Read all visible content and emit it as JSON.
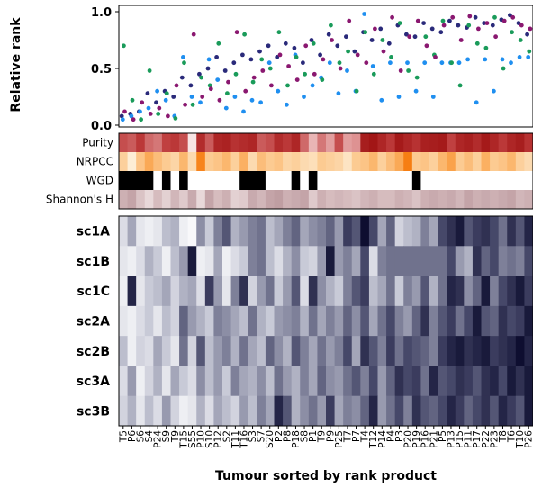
{
  "chart_data": {
    "type": "scatter+heatmap",
    "scatter": {
      "ylabel": "Relative rank",
      "ylim": [
        0.0,
        1.0
      ],
      "yticks": [
        "0.0",
        "0.5",
        "1.0"
      ],
      "series": [
        {
          "name": "",
          "color": "#2a2a7a",
          "values": [
            0.08,
            0.1,
            0.12,
            0.28,
            0.2,
            0.3,
            0.25,
            0.42,
            0.35,
            0.45,
            0.5,
            0.6,
            0.48,
            0.55,
            0.62,
            0.58,
            0.65,
            0.7,
            0.6,
            0.72,
            0.68,
            0.55,
            0.75,
            0.62,
            0.8,
            0.7,
            0.78,
            0.65,
            0.82,
            0.75,
            0.85,
            0.72,
            0.88,
            0.8,
            0.78,
            0.9,
            0.85,
            0.82,
            0.92,
            0.88,
            0.86,
            0.95,
            0.9,
            0.88,
            0.93,
            0.97,
            0.9,
            0.8
          ]
        },
        {
          "name": "",
          "color": "#1f8ff0",
          "values": [
            0.05,
            0.08,
            0.12,
            0.15,
            0.3,
            0.22,
            0.08,
            0.6,
            0.25,
            0.2,
            0.58,
            0.4,
            0.15,
            0.25,
            0.12,
            0.22,
            0.2,
            0.55,
            0.3,
            0.18,
            0.62,
            0.25,
            0.35,
            0.42,
            0.55,
            0.28,
            0.48,
            0.3,
            0.98,
            0.52,
            0.22,
            0.55,
            0.25,
            0.55,
            0.3,
            0.55,
            0.25,
            0.55,
            0.55,
            0.55,
            0.58,
            0.2,
            0.58,
            0.3,
            0.58,
            0.55,
            0.6,
            0.6
          ]
        },
        {
          "name": "",
          "color": "#1a9b5a",
          "values": [
            0.7,
            0.22,
            0.05,
            0.48,
            0.1,
            0.28,
            0.06,
            0.55,
            0.18,
            0.42,
            0.35,
            0.72,
            0.28,
            0.45,
            0.8,
            0.38,
            0.58,
            0.5,
            0.82,
            0.35,
            0.6,
            0.45,
            0.72,
            0.4,
            0.88,
            0.55,
            0.65,
            0.3,
            0.82,
            0.45,
            0.75,
            0.6,
            0.9,
            0.48,
            0.42,
            0.78,
            0.62,
            0.92,
            0.55,
            0.35,
            0.88,
            0.72,
            0.68,
            0.95,
            0.5,
            0.82,
            0.75,
            0.65
          ]
        },
        {
          "name": "",
          "color": "#8a1870",
          "values": [
            0.12,
            0.05,
            0.2,
            0.1,
            0.15,
            0.08,
            0.35,
            0.18,
            0.8,
            0.25,
            0.32,
            0.22,
            0.38,
            0.82,
            0.3,
            0.42,
            0.48,
            0.35,
            0.62,
            0.52,
            0.4,
            0.7,
            0.45,
            0.58,
            0.75,
            0.5,
            0.92,
            0.62,
            0.55,
            0.85,
            0.65,
            0.95,
            0.48,
            0.78,
            0.92,
            0.7,
            0.6,
            0.88,
            0.95,
            0.75,
            0.96,
            0.85,
            0.9,
            0.78,
            0.92,
            0.95,
            0.88,
            0.85
          ]
        }
      ]
    },
    "tracks": {
      "labels": [
        "Purity",
        "NRPCC",
        "WGD",
        "Shannon's H"
      ],
      "purity": [
        0.6,
        0.55,
        0.7,
        0.5,
        0.45,
        0.65,
        0.7,
        0.6,
        0.0,
        0.8,
        0.55,
        0.85,
        0.88,
        0.75,
        0.8,
        0.85,
        0.55,
        0.6,
        0.8,
        0.7,
        0.85,
        0.5,
        0.2,
        0.45,
        0.3,
        0.6,
        0.3,
        0.35,
        0.92,
        0.98,
        0.85,
        0.7,
        0.95,
        0.85,
        0.75,
        0.9,
        0.92,
        0.95,
        0.65,
        0.85,
        0.9,
        0.8,
        0.95,
        0.85,
        0.7,
        0.85,
        0.92,
        0.75
      ],
      "nrpcc": [
        0.3,
        0.0,
        0.4,
        0.6,
        0.45,
        0.35,
        0.25,
        0.5,
        0.2,
        0.9,
        0.35,
        0.4,
        0.5,
        0.3,
        0.55,
        0.2,
        0.45,
        0.35,
        0.4,
        0.25,
        0.3,
        0.2,
        0.15,
        0.35,
        0.3,
        0.25,
        0.1,
        0.35,
        0.4,
        0.5,
        0.3,
        0.45,
        0.6,
        0.95,
        0.35,
        0.4,
        0.3,
        0.5,
        0.65,
        0.35,
        0.45,
        0.3,
        0.55,
        0.35,
        0.4,
        0.5,
        0.3,
        0.2
      ],
      "wgd": [
        1,
        1,
        1,
        1,
        0,
        1,
        0,
        1,
        0,
        0,
        0,
        0,
        0,
        0,
        1,
        1,
        1,
        0,
        0,
        0,
        1,
        0,
        1,
        0,
        0,
        0,
        0,
        0,
        0,
        0,
        0,
        0,
        0,
        0,
        1,
        0,
        0,
        0,
        0,
        0,
        0,
        0,
        0,
        0,
        0,
        0,
        0,
        0
      ],
      "shannon": [
        0.45,
        0.55,
        0.3,
        0.15,
        0.35,
        0.2,
        0.4,
        0.25,
        0.5,
        0.15,
        0.55,
        0.35,
        0.45,
        0.2,
        0.25,
        0.5,
        0.4,
        0.55,
        0.6,
        0.45,
        0.5,
        0.55,
        0.25,
        0.45,
        0.35,
        0.4,
        0.35,
        0.3,
        0.4,
        0.45,
        0.35,
        0.35,
        0.45,
        0.4,
        0.3,
        0.45,
        0.5,
        0.45,
        0.5,
        0.4,
        0.55,
        0.45,
        0.5,
        0.45,
        0.5,
        0.55,
        0.4,
        0.45
      ]
    },
    "heatmap": {
      "rows": [
        "sc1A",
        "sc1B",
        "sc1C",
        "sc2A",
        "sc2B",
        "sc3A",
        "sc3B"
      ],
      "values": [
        [
          0.15,
          0.4,
          0.1,
          0.05,
          0.1,
          0.3,
          0.35,
          0.05,
          0.0,
          0.5,
          0.25,
          0.55,
          0.7,
          0.35,
          0.45,
          0.55,
          0.6,
          0.3,
          0.4,
          0.55,
          0.65,
          0.4,
          0.5,
          0.55,
          0.65,
          0.45,
          0.8,
          0.7,
          1.0,
          0.75,
          0.4,
          0.65,
          0.2,
          0.3,
          0.35,
          0.55,
          0.4,
          0.75,
          0.85,
          0.95,
          0.7,
          0.8,
          0.85,
          0.75,
          0.6,
          0.85,
          0.7,
          0.9
        ],
        [
          0.1,
          0.05,
          0.15,
          0.35,
          0.25,
          0.05,
          0.3,
          0.45,
          0.95,
          0.05,
          0.1,
          0.4,
          0.05,
          0.15,
          0.25,
          0.55,
          0.6,
          0.3,
          0.15,
          0.35,
          0.5,
          0.25,
          0.2,
          0.45,
          0.95,
          0.45,
          0.55,
          0.4,
          0.75,
          0.15,
          0.55,
          0.6,
          0.6,
          0.6,
          0.6,
          0.6,
          0.6,
          0.6,
          0.75,
          0.45,
          0.35,
          0.85,
          0.65,
          0.75,
          0.55,
          0.6,
          0.55,
          0.75
        ],
        [
          0.05,
          0.9,
          0.1,
          0.25,
          0.3,
          0.4,
          0.2,
          0.35,
          0.4,
          0.15,
          0.8,
          0.45,
          0.1,
          0.55,
          0.85,
          0.2,
          0.45,
          0.6,
          0.25,
          0.45,
          0.7,
          0.15,
          0.85,
          0.5,
          0.35,
          0.25,
          0.55,
          0.7,
          0.8,
          0.3,
          0.4,
          0.6,
          0.25,
          0.55,
          0.45,
          0.7,
          0.35,
          0.6,
          0.9,
          0.85,
          0.5,
          0.65,
          0.95,
          0.55,
          0.75,
          0.85,
          0.95,
          0.8
        ],
        [
          0.1,
          0.05,
          0.15,
          0.25,
          0.1,
          0.3,
          0.2,
          0.65,
          0.45,
          0.35,
          0.25,
          0.55,
          0.5,
          0.4,
          0.3,
          0.6,
          0.35,
          0.25,
          0.45,
          0.5,
          0.55,
          0.35,
          0.6,
          0.4,
          0.55,
          0.45,
          0.65,
          0.5,
          0.7,
          0.4,
          0.6,
          0.75,
          0.55,
          0.45,
          0.65,
          0.85,
          0.55,
          0.7,
          0.8,
          0.6,
          0.75,
          0.95,
          0.7,
          0.65,
          0.85,
          0.75,
          0.8,
          0.95
        ],
        [
          0.3,
          0.05,
          0.2,
          0.15,
          0.4,
          0.25,
          0.1,
          0.6,
          0.2,
          0.7,
          0.3,
          0.45,
          0.55,
          0.35,
          0.6,
          0.4,
          0.3,
          0.65,
          0.5,
          0.35,
          0.7,
          0.55,
          0.4,
          0.6,
          0.45,
          0.55,
          0.75,
          0.4,
          0.85,
          0.7,
          0.55,
          0.8,
          0.6,
          0.75,
          0.7,
          0.65,
          0.55,
          0.8,
          0.9,
          0.95,
          0.85,
          0.9,
          0.95,
          0.8,
          0.85,
          0.9,
          1.0,
          0.9
        ],
        [
          0.15,
          0.45,
          0.05,
          0.2,
          0.35,
          0.1,
          0.4,
          0.25,
          0.15,
          0.5,
          0.3,
          0.45,
          0.25,
          0.55,
          0.4,
          0.35,
          0.5,
          0.3,
          0.6,
          0.45,
          0.35,
          0.55,
          0.4,
          0.65,
          0.5,
          0.45,
          0.6,
          0.7,
          0.55,
          0.75,
          0.45,
          0.65,
          0.85,
          0.75,
          0.8,
          0.6,
          0.9,
          0.7,
          0.75,
          0.85,
          0.8,
          0.7,
          0.85,
          0.9,
          0.75,
          0.95,
          0.85,
          0.95
        ],
        [
          0.2,
          0.35,
          0.1,
          0.3,
          0.15,
          0.45,
          0.2,
          0.05,
          0.1,
          0.35,
          0.15,
          0.4,
          0.3,
          0.2,
          0.45,
          0.3,
          0.55,
          0.4,
          0.9,
          0.7,
          0.35,
          0.5,
          0.6,
          0.45,
          0.8,
          0.4,
          0.55,
          0.5,
          0.65,
          0.9,
          0.45,
          0.6,
          0.75,
          0.55,
          0.85,
          0.7,
          0.65,
          0.75,
          0.9,
          0.8,
          0.65,
          0.75,
          0.85,
          0.7,
          0.9,
          0.8,
          0.7,
          0.95
        ]
      ]
    },
    "xticks": [
      "T5",
      "P6",
      "S6",
      "S4",
      "P24",
      "S9",
      "T9",
      "T15",
      "S55",
      "P10",
      "S10",
      "P12",
      "S2",
      "T11",
      "T16",
      "S3",
      "S7",
      "S20",
      "P2",
      "P8",
      "P18",
      "S8",
      "P1",
      "T9",
      "P9",
      "P25",
      "T7",
      "P7",
      "T4",
      "T12",
      "P14",
      "P4",
      "P3",
      "P20",
      "P19",
      "P16",
      "P21",
      "P5",
      "P13",
      "P15",
      "P11",
      "P17",
      "P22",
      "P23",
      "T8",
      "T6",
      "T10",
      "P26"
    ],
    "xlabel": "Tumour sorted by rank product"
  }
}
